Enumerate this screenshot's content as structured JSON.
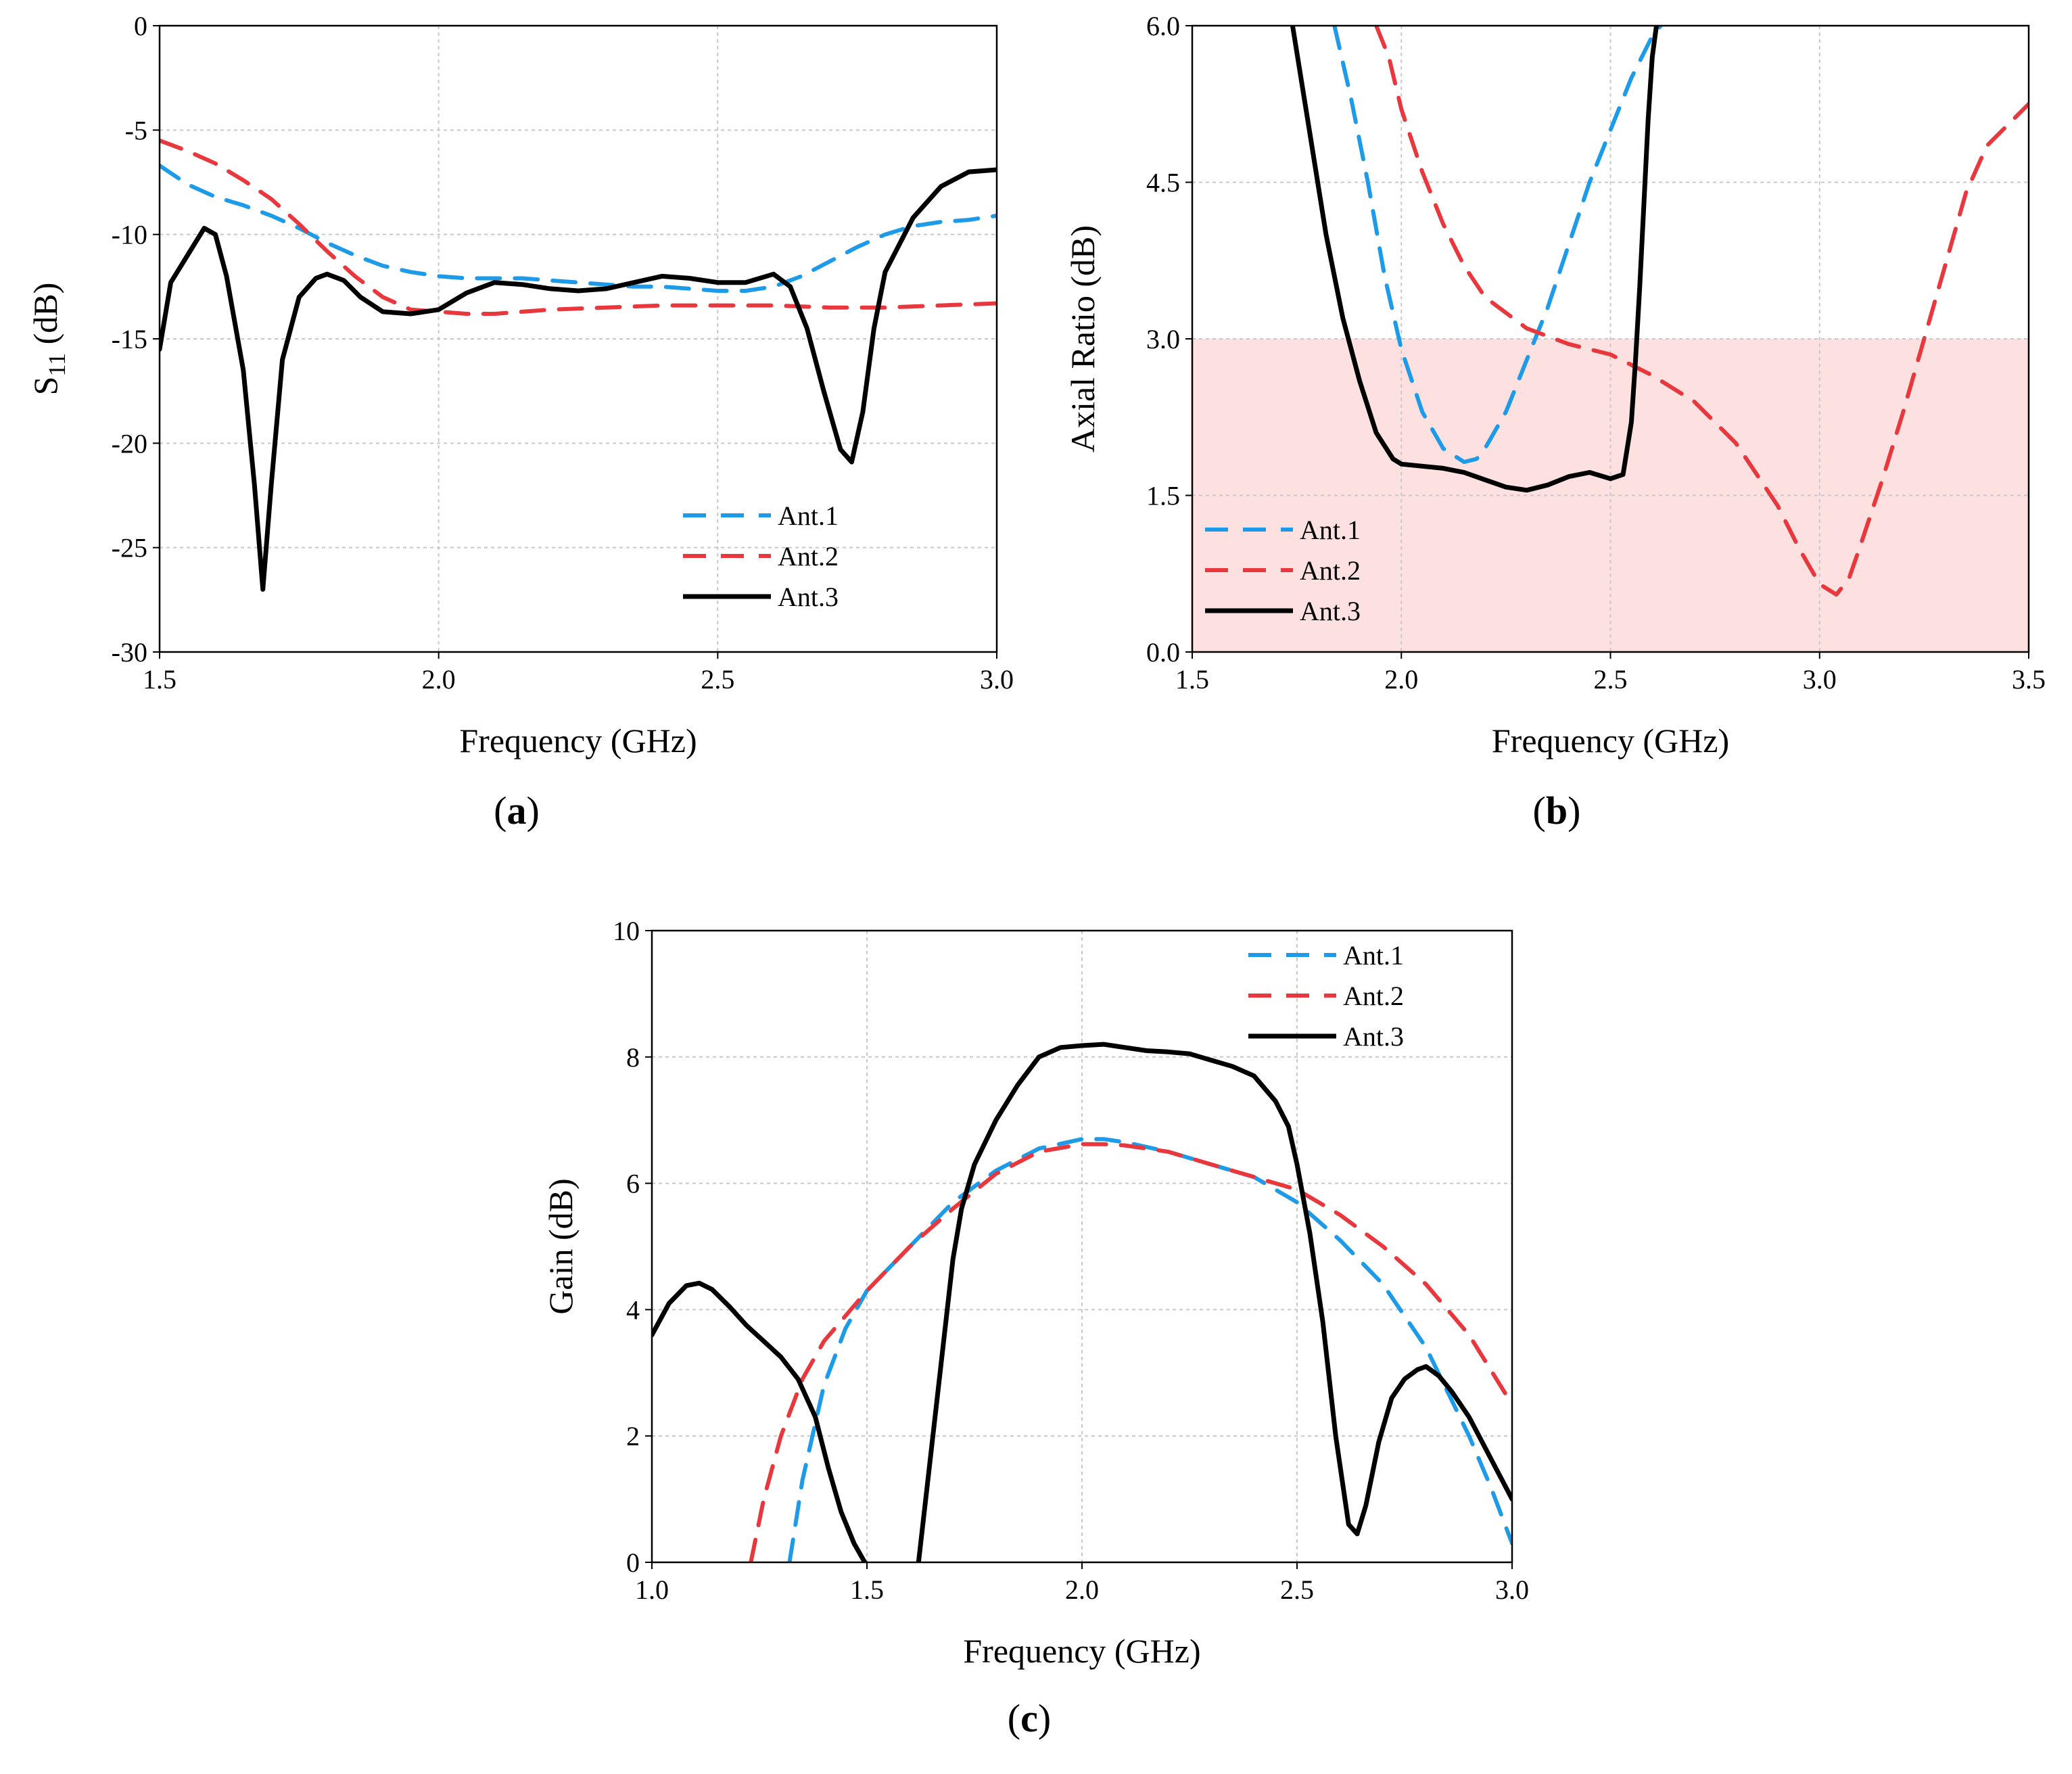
{
  "colors": {
    "ant1": "#1e9be8",
    "ant2": "#e8383d",
    "ant3": "#000000",
    "ar_band": "#fde0e0",
    "grid": "#c8c8c8"
  },
  "chart_data": [
    {
      "panel": "a",
      "type": "line",
      "panel_label": "a",
      "xlabel": "Frequency (GHz)",
      "ylabel_main": "S",
      "ylabel_sub": "11",
      "ylabel_unit": " (dB)",
      "xlim": [
        1.5,
        3.0
      ],
      "ylim": [
        -30,
        0
      ],
      "xticks": [
        1.5,
        2.0,
        2.5,
        3.0
      ],
      "xtick_labels": [
        "1.5",
        "2.0",
        "2.5",
        "3.0"
      ],
      "yticks": [
        0,
        -5,
        -10,
        -15,
        -20,
        -25,
        -30
      ],
      "ytick_labels": [
        "0",
        "-5",
        "-10",
        "-15",
        "-20",
        "-25",
        "-30"
      ],
      "grid": true,
      "legend_position": "bottom-right",
      "series": [
        {
          "name": "Ant.1",
          "key": "ant1",
          "style": "dashed",
          "x": [
            1.5,
            1.55,
            1.6,
            1.65,
            1.7,
            1.75,
            1.8,
            1.85,
            1.9,
            1.95,
            2.0,
            2.05,
            2.1,
            2.15,
            2.2,
            2.25,
            2.3,
            2.35,
            2.4,
            2.45,
            2.5,
            2.55,
            2.6,
            2.65,
            2.7,
            2.75,
            2.8,
            2.85,
            2.9,
            2.95,
            3.0
          ],
          "y": [
            -6.7,
            -7.6,
            -8.2,
            -8.6,
            -9.1,
            -9.7,
            -10.4,
            -11.0,
            -11.5,
            -11.8,
            -12.0,
            -12.1,
            -12.1,
            -12.1,
            -12.2,
            -12.3,
            -12.4,
            -12.5,
            -12.5,
            -12.6,
            -12.7,
            -12.7,
            -12.5,
            -12.0,
            -11.3,
            -10.6,
            -10.0,
            -9.6,
            -9.4,
            -9.3,
            -9.1
          ]
        },
        {
          "name": "Ant.2",
          "key": "ant2",
          "style": "dashed",
          "x": [
            1.5,
            1.55,
            1.6,
            1.65,
            1.7,
            1.75,
            1.8,
            1.85,
            1.9,
            1.95,
            2.0,
            2.05,
            2.1,
            2.15,
            2.2,
            2.3,
            2.4,
            2.5,
            2.6,
            2.7,
            2.8,
            2.9,
            3.0
          ],
          "y": [
            -5.5,
            -6.0,
            -6.6,
            -7.4,
            -8.3,
            -9.5,
            -10.8,
            -12.0,
            -13.0,
            -13.6,
            -13.7,
            -13.8,
            -13.8,
            -13.7,
            -13.6,
            -13.5,
            -13.4,
            -13.4,
            -13.4,
            -13.5,
            -13.5,
            -13.4,
            -13.3
          ]
        },
        {
          "name": "Ant.3",
          "key": "ant3",
          "style": "solid",
          "x": [
            1.5,
            1.52,
            1.55,
            1.58,
            1.6,
            1.62,
            1.65,
            1.67,
            1.685,
            1.7,
            1.72,
            1.75,
            1.78,
            1.8,
            1.83,
            1.86,
            1.9,
            1.95,
            2.0,
            2.05,
            2.1,
            2.15,
            2.2,
            2.25,
            2.3,
            2.35,
            2.4,
            2.45,
            2.5,
            2.55,
            2.6,
            2.63,
            2.66,
            2.69,
            2.72,
            2.74,
            2.76,
            2.78,
            2.8,
            2.85,
            2.9,
            2.95,
            3.0
          ],
          "y": [
            -15.5,
            -12.3,
            -11.0,
            -9.7,
            -10.0,
            -12.0,
            -16.5,
            -22.0,
            -27.0,
            -22.0,
            -16.0,
            -13.0,
            -12.1,
            -11.9,
            -12.2,
            -13.0,
            -13.7,
            -13.8,
            -13.6,
            -12.8,
            -12.3,
            -12.4,
            -12.6,
            -12.7,
            -12.6,
            -12.3,
            -12.0,
            -12.1,
            -12.3,
            -12.3,
            -11.9,
            -12.5,
            -14.5,
            -17.5,
            -20.3,
            -20.9,
            -18.5,
            -14.5,
            -11.8,
            -9.2,
            -7.7,
            -7.0,
            -6.9
          ]
        }
      ]
    },
    {
      "panel": "b",
      "type": "line",
      "panel_label": "b",
      "xlabel": "Frequency (GHz)",
      "ylabel": "Axial Ratio (dB)",
      "xlim": [
        1.5,
        3.5
      ],
      "ylim": [
        0,
        6
      ],
      "xticks": [
        1.5,
        2.0,
        2.5,
        3.0,
        3.5
      ],
      "xtick_labels": [
        "1.5",
        "2.0",
        "2.5",
        "3.0",
        "3.5"
      ],
      "yticks": [
        0,
        1.5,
        3.0,
        4.5,
        6.0
      ],
      "ytick_labels": [
        "0.0",
        "1.5",
        "3.0",
        "4.5",
        "6.0"
      ],
      "grid": true,
      "shaded_band": [
        0,
        3
      ],
      "legend_position": "bottom-left",
      "series": [
        {
          "name": "Ant.1",
          "key": "ant1",
          "style": "dashed",
          "x": [
            1.84,
            1.88,
            1.92,
            1.96,
            2.0,
            2.05,
            2.1,
            2.15,
            2.18,
            2.2,
            2.25,
            2.3,
            2.35,
            2.4,
            2.45,
            2.5,
            2.55,
            2.6,
            2.62
          ],
          "y": [
            6.0,
            5.3,
            4.5,
            3.6,
            2.9,
            2.3,
            1.95,
            1.82,
            1.85,
            1.95,
            2.3,
            2.8,
            3.3,
            3.9,
            4.5,
            5.0,
            5.5,
            5.9,
            6.0
          ]
        },
        {
          "name": "Ant.2",
          "key": "ant2",
          "style": "dashed",
          "x": [
            1.94,
            1.97,
            2.0,
            2.05,
            2.1,
            2.15,
            2.2,
            2.3,
            2.4,
            2.5,
            2.6,
            2.7,
            2.8,
            2.9,
            2.95,
            3.0,
            3.04,
            3.07,
            3.1,
            3.15,
            3.2,
            3.25,
            3.3,
            3.35,
            3.4,
            3.45,
            3.5
          ],
          "y": [
            6.0,
            5.7,
            5.2,
            4.6,
            4.1,
            3.7,
            3.4,
            3.1,
            2.95,
            2.85,
            2.65,
            2.4,
            2.0,
            1.4,
            1.0,
            0.65,
            0.55,
            0.7,
            1.05,
            1.65,
            2.3,
            3.0,
            3.7,
            4.4,
            4.85,
            5.05,
            5.25
          ]
        },
        {
          "name": "Ant.3",
          "key": "ant3",
          "style": "solid",
          "x": [
            1.74,
            1.78,
            1.82,
            1.86,
            1.9,
            1.94,
            1.98,
            2.0,
            2.05,
            2.1,
            2.15,
            2.2,
            2.25,
            2.3,
            2.35,
            2.4,
            2.45,
            2.5,
            2.53,
            2.55,
            2.56,
            2.57,
            2.58,
            2.59,
            2.6,
            2.61
          ],
          "y": [
            6.0,
            5.0,
            4.0,
            3.2,
            2.6,
            2.1,
            1.85,
            1.8,
            1.78,
            1.76,
            1.72,
            1.65,
            1.58,
            1.55,
            1.6,
            1.68,
            1.72,
            1.66,
            1.7,
            2.2,
            2.8,
            3.5,
            4.3,
            5.1,
            5.7,
            6.0
          ]
        }
      ]
    },
    {
      "panel": "c",
      "type": "line",
      "panel_label": "c",
      "xlabel": "Frequency (GHz)",
      "ylabel": "Gain (dB)",
      "xlim": [
        1.0,
        3.0
      ],
      "ylim": [
        0,
        10
      ],
      "xticks": [
        1.0,
        1.5,
        2.0,
        2.5,
        3.0
      ],
      "xtick_labels": [
        "1.0",
        "1.5",
        "2.0",
        "2.5",
        "3.0"
      ],
      "yticks": [
        0,
        2,
        4,
        6,
        8,
        10
      ],
      "ytick_labels": [
        "0",
        "2",
        "4",
        "6",
        "8",
        "10"
      ],
      "grid": true,
      "legend_position": "top-right",
      "series": [
        {
          "name": "Ant.1",
          "key": "ant1",
          "style": "dashed",
          "x": [
            1.32,
            1.35,
            1.4,
            1.45,
            1.5,
            1.6,
            1.7,
            1.8,
            1.9,
            2.0,
            2.05,
            2.1,
            2.2,
            2.3,
            2.4,
            2.5,
            2.6,
            2.7,
            2.8,
            2.9,
            2.95,
            3.0
          ],
          "y": [
            0.0,
            1.3,
            2.8,
            3.7,
            4.3,
            5.0,
            5.7,
            6.2,
            6.55,
            6.7,
            6.7,
            6.65,
            6.5,
            6.3,
            6.1,
            5.7,
            5.1,
            4.4,
            3.4,
            2.0,
            1.2,
            0.3
          ]
        },
        {
          "name": "Ant.2",
          "key": "ant2",
          "style": "dashed",
          "x": [
            1.23,
            1.26,
            1.3,
            1.35,
            1.4,
            1.45,
            1.5,
            1.6,
            1.7,
            1.8,
            1.9,
            2.0,
            2.05,
            2.1,
            2.2,
            2.3,
            2.4,
            2.5,
            2.6,
            2.7,
            2.8,
            2.9,
            3.0
          ],
          "y": [
            0.0,
            1.0,
            2.0,
            2.9,
            3.5,
            3.9,
            4.3,
            5.0,
            5.6,
            6.15,
            6.5,
            6.62,
            6.62,
            6.6,
            6.5,
            6.3,
            6.1,
            5.9,
            5.5,
            5.0,
            4.4,
            3.6,
            2.5
          ]
        },
        {
          "name": "Ant.3",
          "key": "ant3",
          "style": "solid",
          "x": [
            1.0,
            1.04,
            1.08,
            1.11,
            1.14,
            1.18,
            1.22,
            1.26,
            1.3,
            1.34,
            1.38,
            1.41,
            1.44,
            1.47,
            1.495
          ],
          "y": [
            3.6,
            4.1,
            4.38,
            4.42,
            4.32,
            4.05,
            3.75,
            3.5,
            3.25,
            2.9,
            2.3,
            1.5,
            0.8,
            0.3,
            0.0
          ]
        },
        {
          "name": "Ant.3",
          "key": "ant3",
          "style": "solid",
          "segment": 2,
          "x": [
            1.62,
            1.65,
            1.68,
            1.7,
            1.72,
            1.75,
            1.8,
            1.85,
            1.9,
            1.95,
            2.0,
            2.05,
            2.1,
            2.15,
            2.2,
            2.25,
            2.3,
            2.35,
            2.4,
            2.45,
            2.48,
            2.5,
            2.53,
            2.56,
            2.59,
            2.62,
            2.64,
            2.66,
            2.69,
            2.72,
            2.75,
            2.78,
            2.8,
            2.83,
            2.86,
            2.9,
            2.95,
            3.0
          ],
          "y": [
            0.0,
            1.8,
            3.6,
            4.8,
            5.6,
            6.3,
            7.0,
            7.55,
            8.0,
            8.15,
            8.18,
            8.2,
            8.15,
            8.1,
            8.08,
            8.05,
            7.95,
            7.85,
            7.7,
            7.3,
            6.9,
            6.3,
            5.2,
            3.8,
            2.0,
            0.6,
            0.45,
            0.9,
            1.9,
            2.6,
            2.9,
            3.05,
            3.1,
            2.95,
            2.7,
            2.3,
            1.65,
            1.0
          ]
        }
      ],
      "legend": [
        "Ant.1",
        "Ant.2",
        "Ant.3"
      ]
    }
  ]
}
